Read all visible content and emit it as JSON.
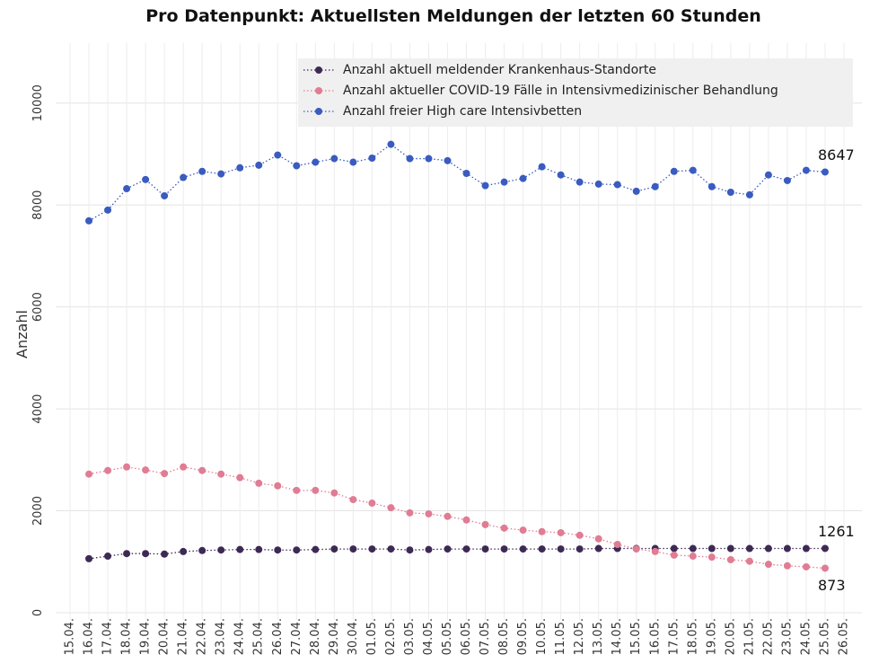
{
  "chart_data": {
    "type": "line",
    "title": "Pro Datenpunkt: Aktuellsten Meldungen der letzten 60 Stunden",
    "y_label": "Anzahl",
    "categories": [
      "15.04.",
      "16.04.",
      "17.04.",
      "18.04.",
      "19.04.",
      "20.04.",
      "21.04.",
      "22.04.",
      "23.04.",
      "24.04.",
      "25.04.",
      "26.04.",
      "27.04.",
      "28.04.",
      "29.04.",
      "30.04.",
      "01.05.",
      "02.05.",
      "03.05.",
      "04.05.",
      "05.05.",
      "06.05.",
      "07.05.",
      "08.05.",
      "09.05.",
      "10.05.",
      "11.05.",
      "12.05.",
      "13.05.",
      "14.05.",
      "15.05.",
      "16.05.",
      "17.05.",
      "18.05.",
      "19.05.",
      "20.05.",
      "21.05.",
      "22.05.",
      "23.05.",
      "24.05.",
      "25.05.",
      "26.05."
    ],
    "series": [
      {
        "name": "Anzahl aktuell meldender Krankenhaus-Standorte",
        "color": "#3d2a54",
        "values": [
          null,
          1060,
          1110,
          1160,
          1160,
          1150,
          1200,
          1220,
          1230,
          1240,
          1240,
          1230,
          1230,
          1240,
          1250,
          1250,
          1250,
          1250,
          1230,
          1240,
          1250,
          1250,
          1250,
          1250,
          1250,
          1250,
          1250,
          1250,
          1260,
          1260,
          1260,
          1260,
          1260,
          1260,
          1260,
          1260,
          1260,
          1260,
          1260,
          1260,
          1261,
          null
        ]
      },
      {
        "name": "Anzahl aktueller COVID-19 Fälle in Intensivmedizinischer Behandlung",
        "color": "#e07c93",
        "values": [
          null,
          2720,
          2790,
          2860,
          2800,
          2730,
          2860,
          2790,
          2720,
          2650,
          2540,
          2490,
          2400,
          2400,
          2350,
          2220,
          2150,
          2060,
          1960,
          1940,
          1890,
          1820,
          1730,
          1660,
          1620,
          1590,
          1570,
          1520,
          1450,
          1340,
          1250,
          1200,
          1130,
          1110,
          1090,
          1040,
          1010,
          950,
          920,
          900,
          873,
          null
        ]
      },
      {
        "name": "Anzahl freier High care Intensivbetten",
        "color": "#3a5bbf",
        "values": [
          null,
          7690,
          7900,
          8320,
          8500,
          8180,
          8540,
          8660,
          8610,
          8730,
          8780,
          8980,
          8770,
          8840,
          8910,
          8840,
          8920,
          9190,
          8910,
          8910,
          8870,
          8620,
          8380,
          8450,
          8520,
          8750,
          8590,
          8450,
          8410,
          8400,
          8270,
          8360,
          8660,
          8680,
          8360,
          8250,
          8200,
          8590,
          8480,
          8680,
          8647,
          null
        ]
      }
    ],
    "ylim": [
      0,
      11000
    ],
    "yticks": [
      0,
      2000,
      4000,
      6000,
      8000,
      10000
    ],
    "grid": true
  }
}
